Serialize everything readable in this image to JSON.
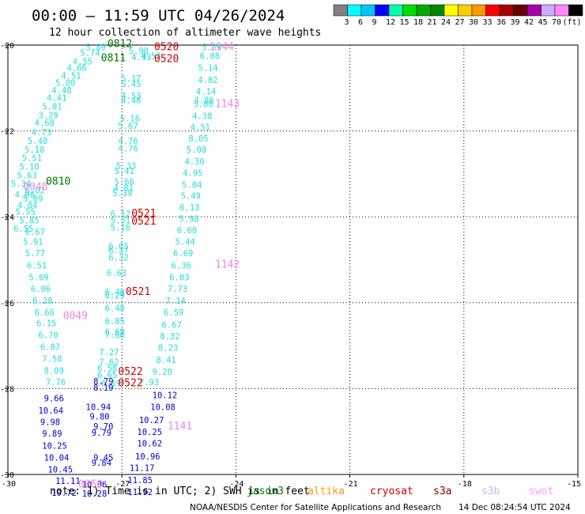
{
  "title": "00:00 – 11:59 UTC 04/26/2024",
  "subtitle": "12 hour collection of altimeter wave heights",
  "chart_data": {
    "type": "scatter",
    "x_ticks": [
      "-30",
      "-27",
      "-24",
      "-21",
      "-18",
      "-15"
    ],
    "y_ticks": [
      "-20",
      "-22",
      "-24",
      "-26",
      "-28",
      "-30"
    ],
    "xlim": [
      -30,
      -15
    ],
    "ylim": [
      -30,
      -20
    ],
    "grid": true,
    "scale": {
      "labels": [
        "3",
        "6",
        "9",
        "12",
        "15",
        "18",
        "21",
        "24",
        "27",
        "30",
        "33",
        "36",
        "39",
        "42",
        "45",
        "70"
      ],
      "unit": "(ft)",
      "colors": [
        "#808080",
        "#00ffff",
        "#00c8ff",
        "#0000ff",
        "#00ffaa",
        "#00dd00",
        "#00aa00",
        "#008800",
        "#ffff00",
        "#ffcc00",
        "#ff9900",
        "#ff0000",
        "#aa0000",
        "#660000",
        "#aa00aa",
        "#ccaaff",
        "#ff88ff",
        "#000000"
      ]
    },
    "series": [
      {
        "color": "#22dddd",
        "points": [
          {
            "x": -27.95,
            "y": -20.12,
            "v": "5.89"
          },
          {
            "x": -28.1,
            "y": -20.25,
            "v": "5.74"
          },
          {
            "x": -28.3,
            "y": -20.45,
            "v": "4.55"
          },
          {
            "x": -28.45,
            "y": -20.6,
            "v": "4.66"
          },
          {
            "x": -28.6,
            "y": -20.78,
            "v": "4.51"
          },
          {
            "x": -28.75,
            "y": -20.95,
            "v": "5.00"
          },
          {
            "x": -28.85,
            "y": -21.12,
            "v": "4.48"
          },
          {
            "x": -28.98,
            "y": -21.3,
            "v": "4.41"
          },
          {
            "x": -29.1,
            "y": -21.5,
            "v": "5.01"
          },
          {
            "x": -29.2,
            "y": -21.7,
            "v": "3.29"
          },
          {
            "x": -29.3,
            "y": -21.88,
            "v": "4.68"
          },
          {
            "x": -29.38,
            "y": -22.1,
            "v": "4.73"
          },
          {
            "x": -29.48,
            "y": -22.3,
            "v": "5.48"
          },
          {
            "x": -29.56,
            "y": -22.5,
            "v": "5.18"
          },
          {
            "x": -29.63,
            "y": -22.7,
            "v": "5.51"
          },
          {
            "x": -29.7,
            "y": -22.9,
            "v": "5.10"
          },
          {
            "x": -29.76,
            "y": -23.1,
            "v": "5.63"
          },
          {
            "x": -29.92,
            "y": -23.3,
            "v": "5.34"
          },
          {
            "x": -29.55,
            "y": -23.45,
            "v": "6.02"
          },
          {
            "x": -29.82,
            "y": -23.55,
            "v": "4.96"
          },
          {
            "x": -29.6,
            "y": -23.65,
            "v": "5.89"
          },
          {
            "x": -29.75,
            "y": -23.8,
            "v": "4.84"
          },
          {
            "x": -29.8,
            "y": -23.95,
            "v": "5.55"
          },
          {
            "x": -29.7,
            "y": -24.15,
            "v": "5.85"
          },
          {
            "x": -29.85,
            "y": -24.35,
            "v": "6.55"
          },
          {
            "x": -29.55,
            "y": -24.42,
            "v": "6.67"
          },
          {
            "x": -29.6,
            "y": -24.65,
            "v": "5.91"
          },
          {
            "x": -29.55,
            "y": -24.92,
            "v": "5.77"
          },
          {
            "x": -29.5,
            "y": -25.2,
            "v": "6.51"
          },
          {
            "x": -29.45,
            "y": -25.48,
            "v": "5.69"
          },
          {
            "x": -29.4,
            "y": -25.75,
            "v": "6.06"
          },
          {
            "x": -29.35,
            "y": -26.02,
            "v": "6.28"
          },
          {
            "x": -29.3,
            "y": -26.3,
            "v": "6.66"
          },
          {
            "x": -29.25,
            "y": -26.55,
            "v": "6.15"
          },
          {
            "x": -29.2,
            "y": -26.82,
            "v": "6.70"
          },
          {
            "x": -29.15,
            "y": -27.1,
            "v": "6.87"
          },
          {
            "x": -29.1,
            "y": -27.38,
            "v": "7.58"
          },
          {
            "x": -29.05,
            "y": -27.65,
            "v": "8.09"
          },
          {
            "x": -29.0,
            "y": -27.92,
            "v": "7.76"
          },
          {
            "x": -24.9,
            "y": -20.12,
            "v": "5.09"
          },
          {
            "x": -24.95,
            "y": -20.32,
            "v": "6.08"
          },
          {
            "x": -25.0,
            "y": -20.6,
            "v": "5.14"
          },
          {
            "x": -25.0,
            "y": -20.88,
            "v": "4.82"
          },
          {
            "x": -25.05,
            "y": -21.15,
            "v": "4.14"
          },
          {
            "x": -25.1,
            "y": -21.35,
            "v": "4.86"
          },
          {
            "x": -25.12,
            "y": -21.45,
            "v": "5.00"
          },
          {
            "x": -25.15,
            "y": -21.72,
            "v": "4.38"
          },
          {
            "x": -25.2,
            "y": -21.98,
            "v": "4.51"
          },
          {
            "x": -25.25,
            "y": -22.25,
            "v": "8.05"
          },
          {
            "x": -25.3,
            "y": -22.5,
            "v": "5.08"
          },
          {
            "x": -25.35,
            "y": -22.78,
            "v": "4.30"
          },
          {
            "x": -25.4,
            "y": -23.05,
            "v": "4.95"
          },
          {
            "x": -25.42,
            "y": -23.32,
            "v": "5.04"
          },
          {
            "x": -25.45,
            "y": -23.58,
            "v": "5.49"
          },
          {
            "x": -25.48,
            "y": -23.85,
            "v": "6.13"
          },
          {
            "x": -25.5,
            "y": -24.12,
            "v": "5.98"
          },
          {
            "x": -25.55,
            "y": -24.38,
            "v": "6.60"
          },
          {
            "x": -25.6,
            "y": -24.65,
            "v": "5.44"
          },
          {
            "x": -25.65,
            "y": -24.92,
            "v": "6.69"
          },
          {
            "x": -25.7,
            "y": -25.2,
            "v": "6.36"
          },
          {
            "x": -25.75,
            "y": -25.48,
            "v": "6.03"
          },
          {
            "x": -25.8,
            "y": -25.75,
            "v": "7.73"
          },
          {
            "x": -25.85,
            "y": -26.02,
            "v": "7.14"
          },
          {
            "x": -25.9,
            "y": -26.3,
            "v": "6.59"
          },
          {
            "x": -25.95,
            "y": -26.58,
            "v": "6.67"
          },
          {
            "x": -26.0,
            "y": -26.85,
            "v": "8.32"
          },
          {
            "x": -26.05,
            "y": -27.12,
            "v": "8.23"
          },
          {
            "x": -26.1,
            "y": -27.4,
            "v": "8.41"
          },
          {
            "x": -26.55,
            "y": -27.92,
            "v": "7.93"
          },
          {
            "x": -26.82,
            "y": -20.2,
            "v": "5.90"
          },
          {
            "x": -26.75,
            "y": -20.35,
            "v": "4.93"
          },
          {
            "x": -26.5,
            "y": -20.32,
            "v": "4.57"
          },
          {
            "x": -27.02,
            "y": -20.85,
            "v": "5.17"
          },
          {
            "x": -27.02,
            "y": -20.98,
            "v": "5.45"
          },
          {
            "x": -27.02,
            "y": -21.25,
            "v": "4.53"
          },
          {
            "x": -27.02,
            "y": -21.35,
            "v": "4.46"
          },
          {
            "x": -27.05,
            "y": -21.78,
            "v": "5.16"
          },
          {
            "x": -27.1,
            "y": -21.95,
            "v": "5.67"
          },
          {
            "x": -27.1,
            "y": -22.3,
            "v": "4.76"
          },
          {
            "x": -27.1,
            "y": -22.48,
            "v": "4.76"
          },
          {
            "x": -27.15,
            "y": -22.88,
            "v": "5.33"
          },
          {
            "x": -27.2,
            "y": -23.0,
            "v": "5.41"
          },
          {
            "x": -27.2,
            "y": -23.25,
            "v": "5.66"
          },
          {
            "x": -27.22,
            "y": -23.4,
            "v": "4.81"
          },
          {
            "x": -27.25,
            "y": -23.52,
            "v": "5.39"
          },
          {
            "x": -27.3,
            "y": -24.0,
            "v": "6.12"
          },
          {
            "x": -27.3,
            "y": -24.15,
            "v": "5.31"
          },
          {
            "x": -27.3,
            "y": -24.32,
            "v": "5.16"
          },
          {
            "x": -27.35,
            "y": -24.75,
            "v": "6.05"
          },
          {
            "x": -27.35,
            "y": -24.85,
            "v": "6.37"
          },
          {
            "x": -27.35,
            "y": -25.02,
            "v": "6.32"
          },
          {
            "x": -27.4,
            "y": -25.38,
            "v": "6.63"
          },
          {
            "x": -27.45,
            "y": -25.82,
            "v": "6.48"
          },
          {
            "x": -27.45,
            "y": -25.9,
            "v": "6.29"
          },
          {
            "x": -27.45,
            "y": -26.2,
            "v": "6.48"
          },
          {
            "x": -27.45,
            "y": -26.5,
            "v": "6.85"
          },
          {
            "x": -27.45,
            "y": -26.75,
            "v": "6.69"
          },
          {
            "x": -27.45,
            "y": -26.82,
            "v": "7.66"
          },
          {
            "x": -27.6,
            "y": -27.22,
            "v": "7.27"
          },
          {
            "x": -27.6,
            "y": -27.45,
            "v": "7.62"
          },
          {
            "x": -27.65,
            "y": -27.6,
            "v": "6.58"
          },
          {
            "x": -27.65,
            "y": -27.75,
            "v": "6.65"
          },
          {
            "x": -26.2,
            "y": -27.68,
            "v": "9.20"
          },
          {
            "x": -27.55,
            "y": -27.95,
            "v": "6.19"
          }
        ]
      },
      {
        "color": "#0000cc",
        "points": [
          {
            "x": -29.05,
            "y": -28.3,
            "v": "9.66"
          },
          {
            "x": -29.2,
            "y": -28.58,
            "v": "10.64"
          },
          {
            "x": -29.15,
            "y": -28.85,
            "v": "9.98"
          },
          {
            "x": -29.1,
            "y": -29.12,
            "v": "9.89"
          },
          {
            "x": -29.1,
            "y": -29.4,
            "v": "10.25"
          },
          {
            "x": -29.05,
            "y": -29.68,
            "v": "10.04"
          },
          {
            "x": -28.95,
            "y": -29.95,
            "v": "10.45"
          },
          {
            "x": -28.75,
            "y": -30.22,
            "v": "11.11"
          },
          {
            "x": -28.85,
            "y": -30.5,
            "v": "10.72"
          },
          {
            "x": -28.05,
            "y": -30.3,
            "v": "10.86"
          },
          {
            "x": -28.05,
            "y": -30.52,
            "v": "10.28"
          },
          {
            "x": -27.75,
            "y": -28.95,
            "v": "9.70"
          },
          {
            "x": -27.8,
            "y": -29.1,
            "v": "9.79"
          },
          {
            "x": -27.75,
            "y": -29.68,
            "v": "9.45"
          },
          {
            "x": -27.8,
            "y": -29.8,
            "v": "9.84"
          },
          {
            "x": -27.75,
            "y": -27.9,
            "v": "8.79"
          },
          {
            "x": -27.75,
            "y": -28.05,
            "v": "8.19"
          },
          {
            "x": -27.95,
            "y": -28.5,
            "v": "10.94"
          },
          {
            "x": -27.85,
            "y": -28.72,
            "v": "9.80"
          },
          {
            "x": -26.2,
            "y": -28.22,
            "v": "10.12"
          },
          {
            "x": -26.25,
            "y": -28.5,
            "v": "10.08"
          },
          {
            "x": -26.55,
            "y": -28.8,
            "v": "10.27"
          },
          {
            "x": -26.6,
            "y": -29.08,
            "v": "10.25"
          },
          {
            "x": -26.6,
            "y": -29.35,
            "v": "10.62"
          },
          {
            "x": -26.65,
            "y": -29.65,
            "v": "10.96"
          },
          {
            "x": -26.8,
            "y": -29.92,
            "v": "11.17"
          },
          {
            "x": -26.85,
            "y": -30.2,
            "v": "11.85"
          },
          {
            "x": -26.85,
            "y": -30.48,
            "v": "11.92"
          }
        ]
      }
    ],
    "passes": [
      {
        "label": "0812",
        "color": "#007700",
        "x": -27.38,
        "y": -20.05
      },
      {
        "label": "0811",
        "color": "#007700",
        "x": -27.55,
        "y": -20.38
      },
      {
        "label": "0810",
        "color": "#007700",
        "x": -29.0,
        "y": -23.25
      },
      {
        "label": "0520",
        "color": "#cc0000",
        "x": -26.15,
        "y": -20.12
      },
      {
        "label": "0520",
        "color": "#cc0000",
        "x": -26.15,
        "y": -20.4
      },
      {
        "label": "0521",
        "color": "#cc0000",
        "x": -26.75,
        "y": -24.0
      },
      {
        "label": "0521",
        "color": "#cc0000",
        "x": -26.75,
        "y": -24.18
      },
      {
        "label": "0521",
        "color": "#cc0000",
        "x": -26.9,
        "y": -25.82
      },
      {
        "label": "0522",
        "color": "#cc0000",
        "x": -27.1,
        "y": -27.68
      },
      {
        "label": "0522",
        "color": "#cc0000",
        "x": -27.1,
        "y": -27.95
      },
      {
        "label": "1144",
        "color": "#ee88dd",
        "x": -24.7,
        "y": -20.12
      },
      {
        "label": "1143",
        "color": "#ee88dd",
        "x": -24.55,
        "y": -21.45
      },
      {
        "label": "1142",
        "color": "#ee88dd",
        "x": -24.55,
        "y": -25.18
      },
      {
        "label": "1141",
        "color": "#ee88dd",
        "x": -25.8,
        "y": -28.95
      },
      {
        "label": "0048",
        "color": "#ee88dd",
        "x": -29.6,
        "y": -23.38
      },
      {
        "label": "0049",
        "color": "#ee88dd",
        "x": -28.55,
        "y": -26.38
      },
      {
        "label": "0050",
        "color": "#ee88dd",
        "x": -28.15,
        "y": -30.3
      }
    ]
  },
  "note": {
    "prefix": "note: 1) Time is in UTC; 2) SWH is in feet",
    "missions": [
      {
        "name": "jason3",
        "color": "#007700"
      },
      {
        "name": "altika",
        "color": "#ff9900"
      },
      {
        "name": "cryosat",
        "color": "#cc0000"
      },
      {
        "name": "s3a",
        "color": "#880000"
      },
      {
        "name": "s3b",
        "color": "#bbbbff"
      },
      {
        "name": "swot",
        "color": "#ff99ff"
      }
    ]
  },
  "credit": {
    "org": "NOAA/NESDIS Center for Satellite Applications and Research",
    "stamp": "14 Dec 08:24:54 UTC 2024"
  }
}
